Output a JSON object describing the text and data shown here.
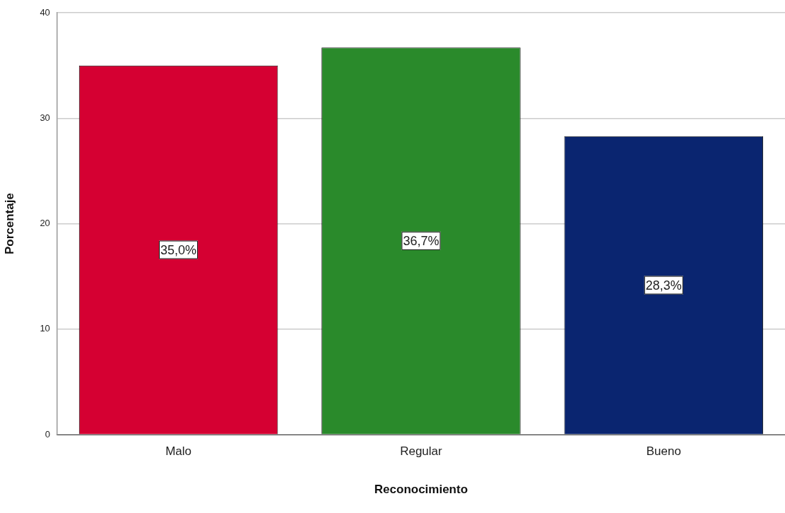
{
  "chart_data": {
    "type": "bar",
    "xlabel": "Reconocimiento",
    "ylabel": "Porcentaje",
    "categories": [
      "Malo",
      "Regular",
      "Bueno"
    ],
    "values": [
      35.0,
      36.7,
      28.3
    ],
    "colors": [
      "#d50032",
      "#2a8a2b",
      "#0a2570"
    ],
    "value_labels": [
      "35,0%",
      "36,7%",
      "28,3%"
    ],
    "ylim": [
      0,
      40
    ],
    "yticks": [
      0,
      10,
      20,
      30,
      40
    ],
    "grid": "y"
  }
}
